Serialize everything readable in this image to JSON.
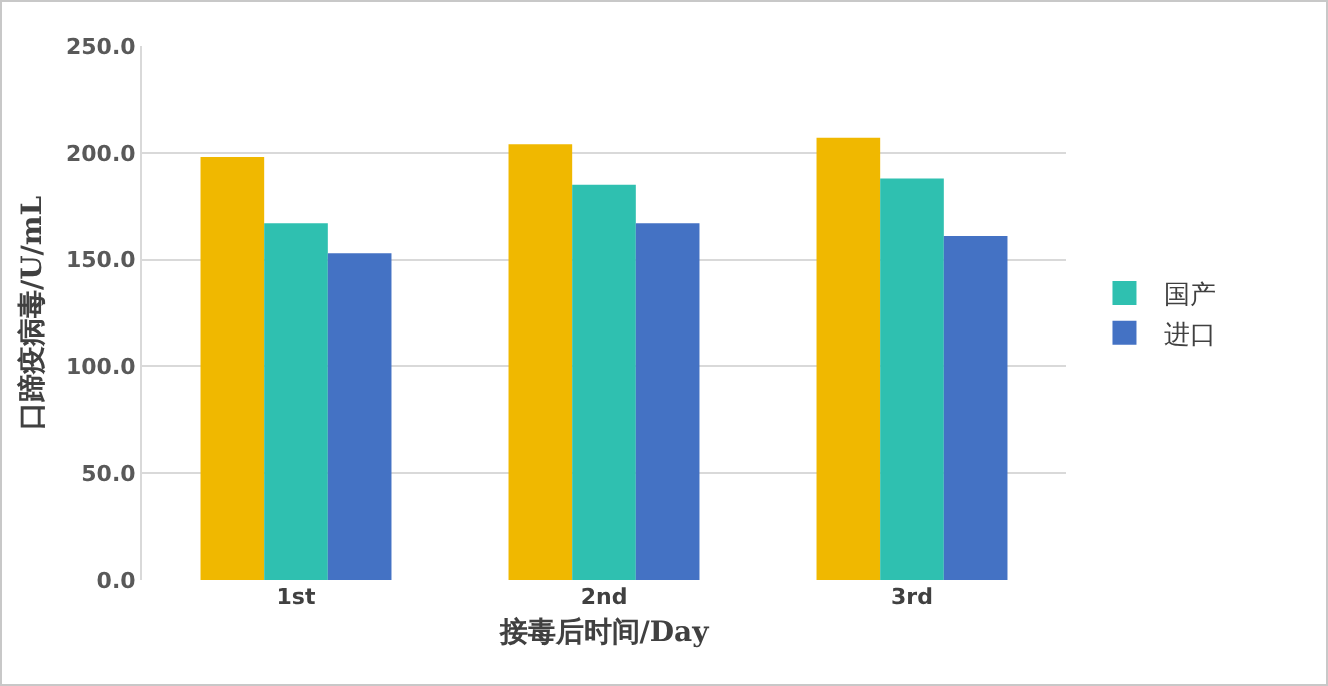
{
  "chart_data": {
    "type": "bar",
    "xlabel": "接毒后时间/Day",
    "ylabel": "口蹄疫病毒/U/mL",
    "categories": [
      "1st",
      "2nd",
      "3rd"
    ],
    "series": [
      {
        "color": "#f0b800",
        "values": [
          198,
          204,
          207
        ]
      },
      {
        "name": "国产",
        "color": "#2fc0b0",
        "values": [
          167,
          185,
          188
        ]
      },
      {
        "name": "进口",
        "color": "#4472c4",
        "values": [
          153,
          167,
          161
        ]
      }
    ],
    "ylim": [
      0,
      250
    ],
    "yticks": [
      {
        "value": 0,
        "label": "0.0"
      },
      {
        "value": 50,
        "label": "50.0"
      },
      {
        "value": 100,
        "label": "100.0"
      },
      {
        "value": 150,
        "label": "150.0"
      },
      {
        "value": 200,
        "label": "200.0"
      },
      {
        "value": 250,
        "label": "250.0"
      }
    ],
    "grid": "y",
    "legend": "right"
  }
}
